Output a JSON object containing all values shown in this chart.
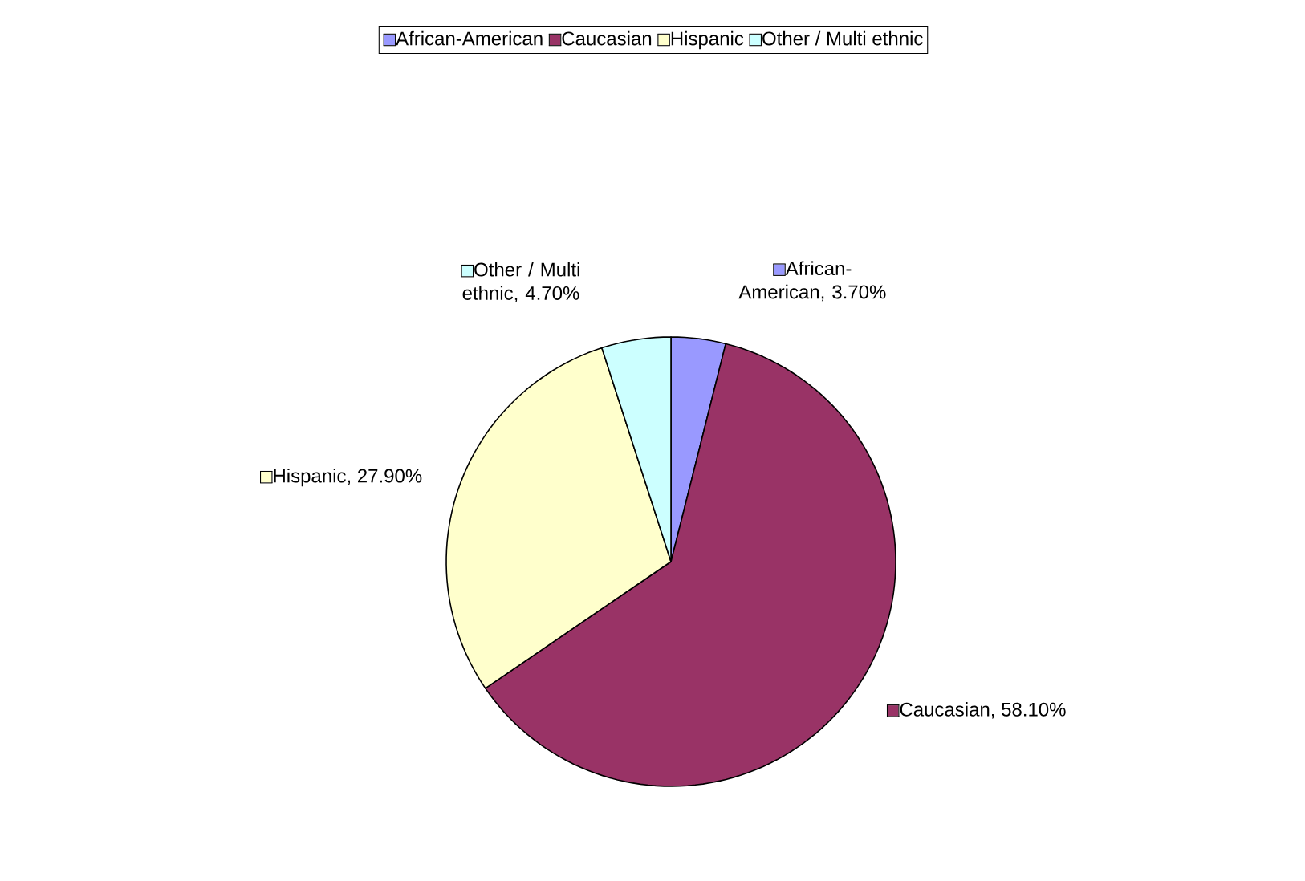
{
  "chart_data": {
    "type": "pie",
    "categories": [
      "African-American",
      "Caucasian",
      "Hispanic",
      "Other / Multi ethnic"
    ],
    "values": [
      3.7,
      58.1,
      27.9,
      4.7
    ],
    "colors": [
      "#9999ff",
      "#993366",
      "#ffffcc",
      "#ccffff"
    ],
    "value_labels": [
      "African-American, 3.70%",
      "Caucasian, 58.10%",
      "Hispanic, 27.90%",
      "Other / Multi ethnic, 4.70%"
    ],
    "legend": "top"
  }
}
